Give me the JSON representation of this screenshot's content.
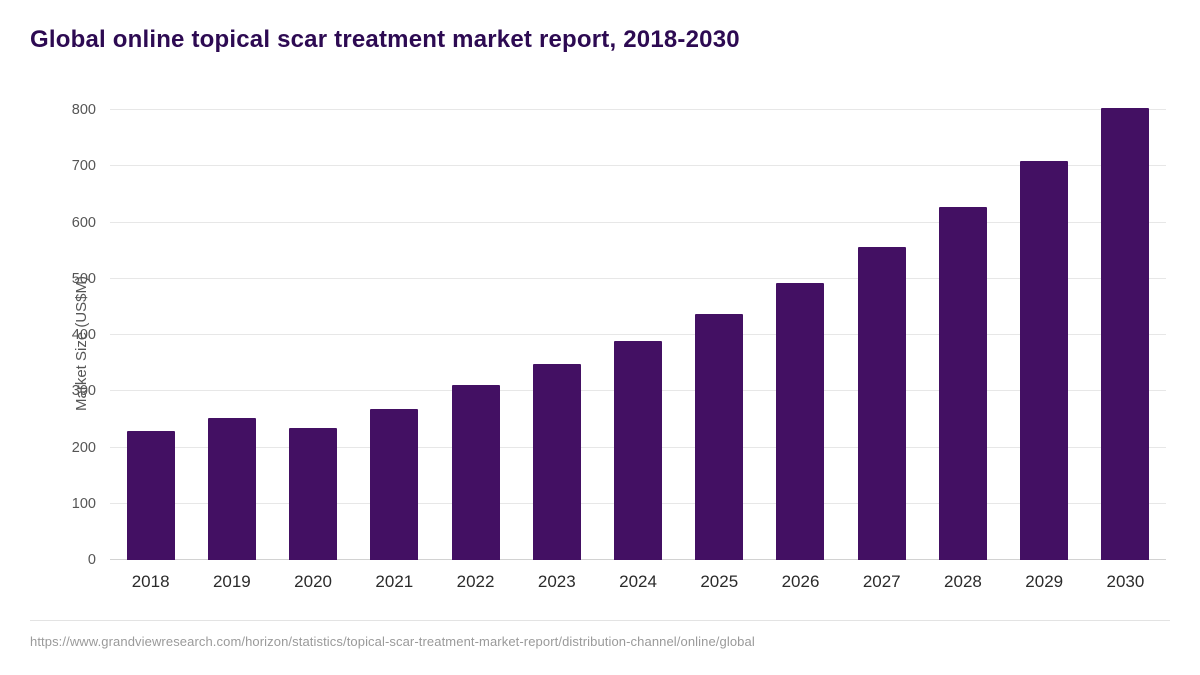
{
  "header": {
    "title": "Global online topical scar treatment market report, 2018-2030"
  },
  "footer": {
    "source_url": "https://www.grandviewresearch.com/horizon/statistics/topical-scar-treatment-market-report/distribution-channel/online/global"
  },
  "colors": {
    "bar": "#431063",
    "title": "#2d0a52",
    "grid": "#e7e7e7",
    "axis_line": "#d2d2d2",
    "axis_text": "#555555",
    "xlabel_text": "#2b2b2b",
    "footer_text": "#9a9a9a"
  },
  "chart_data": {
    "type": "bar",
    "title": "Global online topical scar treatment market report, 2018-2030",
    "categories": [
      "2018",
      "2019",
      "2020",
      "2021",
      "2022",
      "2023",
      "2024",
      "2025",
      "2026",
      "2027",
      "2028",
      "2029",
      "2030"
    ],
    "values": [
      230,
      252,
      234,
      268,
      312,
      348,
      390,
      438,
      492,
      556,
      627,
      710,
      803
    ],
    "xlabel": "",
    "ylabel": "Market Size (US$M)",
    "ylim": [
      0,
      800
    ],
    "yticks": [
      0,
      100,
      200,
      300,
      400,
      500,
      600,
      700,
      800
    ],
    "grid": "horizontal",
    "legend": "none",
    "bar_color": "#431063",
    "unit": "US$M"
  }
}
